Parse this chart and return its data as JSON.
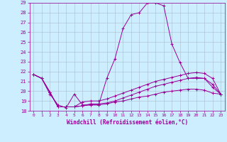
{
  "title": "",
  "xlabel": "Windchill (Refroidissement éolien,°C)",
  "background_color": "#cceeff",
  "line_color": "#990099",
  "grid_color": "#aabbcc",
  "xlim": [
    -0.5,
    23.5
  ],
  "ylim": [
    18,
    29
  ],
  "xticks": [
    0,
    1,
    2,
    3,
    4,
    5,
    6,
    7,
    8,
    9,
    10,
    11,
    12,
    13,
    14,
    15,
    16,
    17,
    18,
    19,
    20,
    21,
    22,
    23
  ],
  "yticks": [
    18,
    19,
    20,
    21,
    22,
    23,
    24,
    25,
    26,
    27,
    28,
    29
  ],
  "lines": [
    {
      "x": [
        0,
        1,
        2,
        3,
        4,
        5,
        6,
        7,
        8,
        9,
        10,
        11,
        12,
        13,
        14,
        15,
        16,
        17,
        18,
        19,
        20,
        21,
        22,
        23
      ],
      "y": [
        21.7,
        21.3,
        19.7,
        18.6,
        18.3,
        19.7,
        18.6,
        18.6,
        18.6,
        21.3,
        23.3,
        26.4,
        27.8,
        28.0,
        29.0,
        29.0,
        28.7,
        24.8,
        22.9,
        21.3,
        21.3,
        21.3,
        20.4,
        19.7
      ]
    },
    {
      "x": [
        0,
        1,
        2,
        3,
        4,
        5,
        6,
        7,
        8,
        9,
        10,
        11,
        12,
        13,
        14,
        15,
        16,
        17,
        18,
        19,
        20,
        21,
        22,
        23
      ],
      "y": [
        21.7,
        21.3,
        19.9,
        18.4,
        18.4,
        18.4,
        18.9,
        19.0,
        19.0,
        19.2,
        19.5,
        19.8,
        20.1,
        20.4,
        20.7,
        21.0,
        21.2,
        21.4,
        21.6,
        21.8,
        21.9,
        21.8,
        21.3,
        19.7
      ]
    },
    {
      "x": [
        0,
        1,
        2,
        3,
        4,
        5,
        6,
        7,
        8,
        9,
        10,
        11,
        12,
        13,
        14,
        15,
        16,
        17,
        18,
        19,
        20,
        21,
        22,
        23
      ],
      "y": [
        21.7,
        21.3,
        19.9,
        18.4,
        18.4,
        18.4,
        18.5,
        18.7,
        18.7,
        18.8,
        19.0,
        19.3,
        19.6,
        19.9,
        20.2,
        20.5,
        20.7,
        20.9,
        21.1,
        21.3,
        21.4,
        21.3,
        20.7,
        19.7
      ]
    },
    {
      "x": [
        0,
        1,
        2,
        3,
        4,
        5,
        6,
        7,
        8,
        9,
        10,
        11,
        12,
        13,
        14,
        15,
        16,
        17,
        18,
        19,
        20,
        21,
        22,
        23
      ],
      "y": [
        21.7,
        21.3,
        19.9,
        18.4,
        18.4,
        18.4,
        18.5,
        18.6,
        18.6,
        18.7,
        18.9,
        19.0,
        19.2,
        19.4,
        19.5,
        19.7,
        19.9,
        20.0,
        20.1,
        20.2,
        20.2,
        20.1,
        19.8,
        19.7
      ]
    }
  ]
}
